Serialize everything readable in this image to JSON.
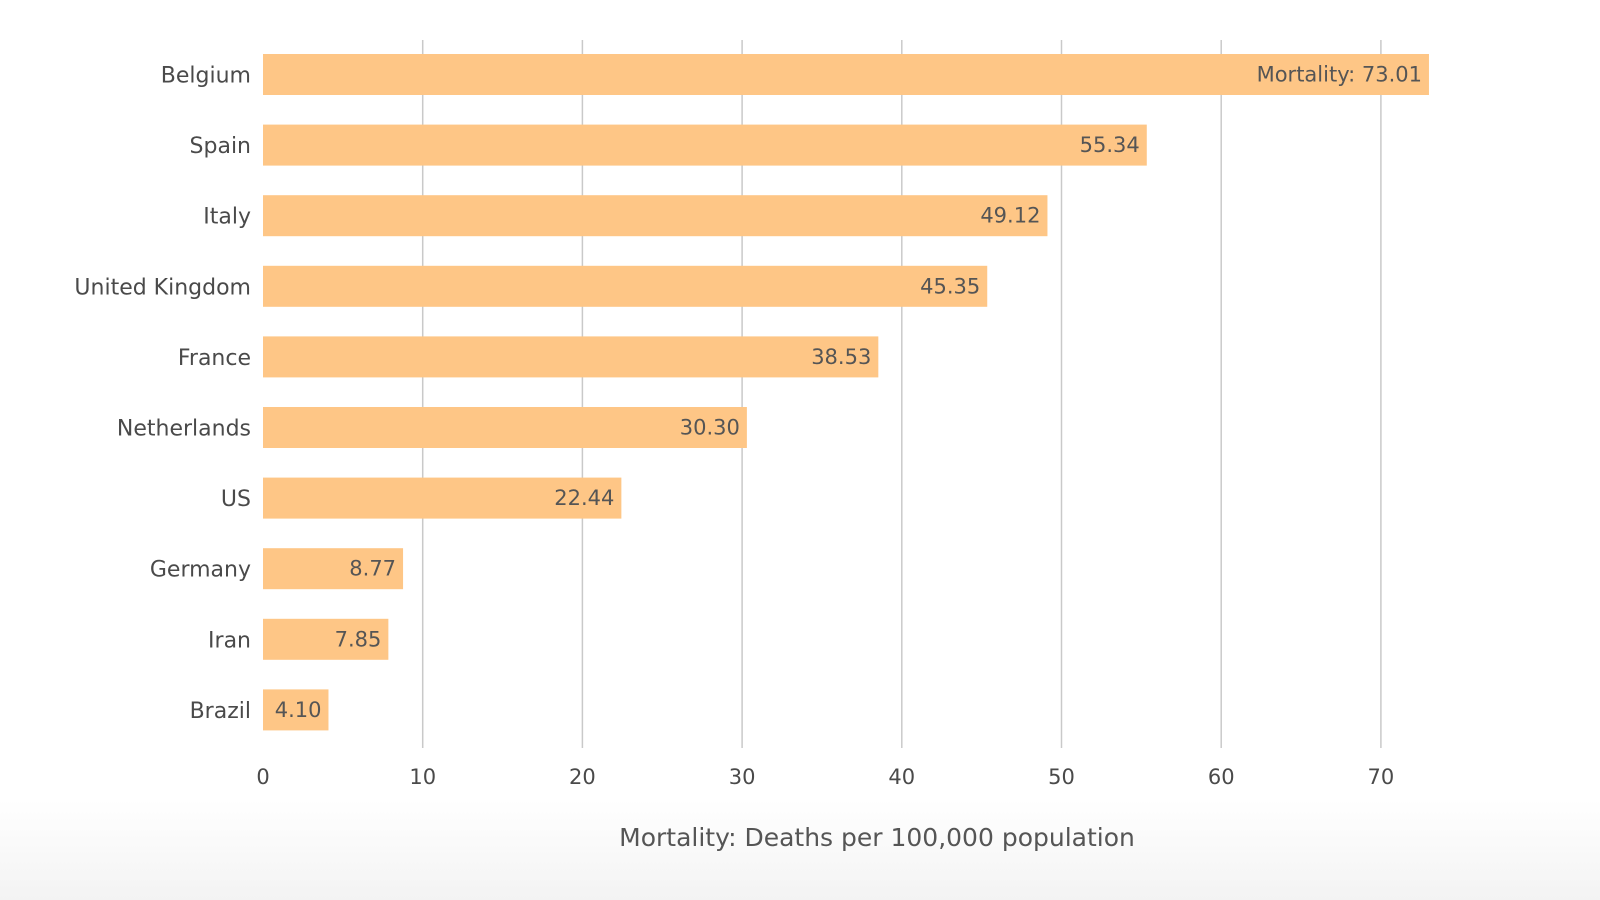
{
  "chart_data": {
    "type": "bar",
    "orientation": "horizontal",
    "title": "",
    "xlabel": "Mortality: Deaths per 100,000 population",
    "ylabel": "",
    "categories": [
      "Belgium",
      "Spain",
      "Italy",
      "United Kingdom",
      "France",
      "Netherlands",
      "US",
      "Germany",
      "Iran",
      "Brazil"
    ],
    "values": [
      73.01,
      55.34,
      49.12,
      45.35,
      38.53,
      30.3,
      22.44,
      8.77,
      7.85,
      4.1
    ],
    "value_labels": [
      "Mortality: 73.01",
      "55.34",
      "49.12",
      "45.35",
      "38.53",
      "30.30",
      "22.44",
      "8.77",
      "7.85",
      "4.10"
    ],
    "xticks": [
      "0",
      "10",
      "20",
      "30",
      "40",
      "50",
      "60",
      "70"
    ],
    "xlim": [
      0,
      73.5
    ],
    "grid": true,
    "bar_color": "#fec686"
  }
}
